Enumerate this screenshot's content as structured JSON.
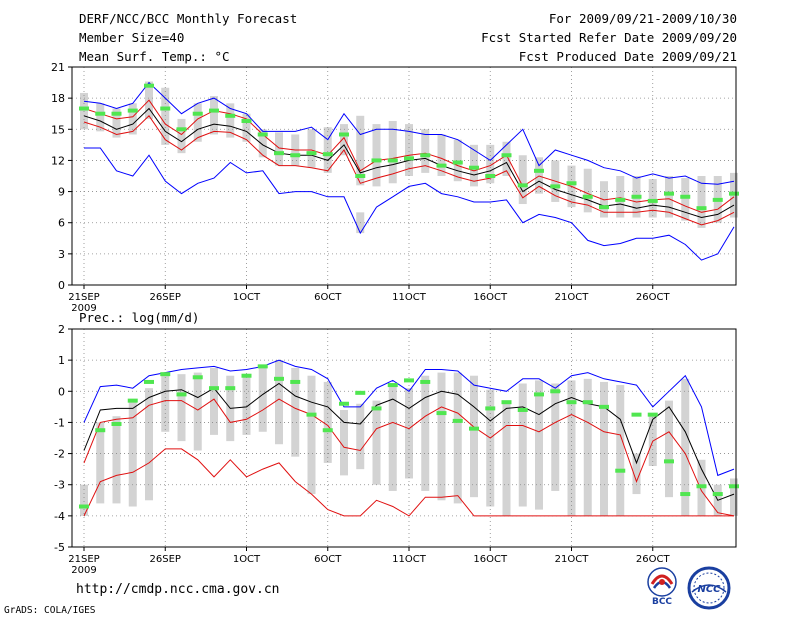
{
  "header": {
    "title": "DERF/NCC/BCC Monthly Forecast",
    "member_size": "Member Size=40",
    "variable": "Mean Surf. Temp.: °C",
    "forecast_period": "For 2009/09/21-2009/10/30",
    "started_refer": "Fcst Started Refer Date 2009/09/20",
    "produced": "Fcst Produced Date 2009/09/21"
  },
  "footer": {
    "url": "http://cmdp.ncc.cma.gov.cn",
    "credit": "GrADS: COLA/IGES",
    "logo_bcc_text": "BCC",
    "logo_ncc_text": "NCC"
  },
  "colors": {
    "box": "#d3d3d3",
    "median": "#50e650",
    "max": "#0000ff",
    "min_line": "#e01010",
    "mean": "#000000",
    "pct": "#e01010",
    "grid": "#888888"
  },
  "chart_data": [
    {
      "type": "line",
      "title": "Mean Surf. Temp.: °C",
      "xlabel": "",
      "ylabel": "",
      "ylim": [
        0,
        21
      ],
      "yticks": [
        0,
        3,
        6,
        9,
        12,
        15,
        18,
        21
      ],
      "xlim": [
        1,
        41
      ],
      "xtick_pos": [
        1,
        6,
        11,
        16,
        21,
        26,
        31,
        36
      ],
      "xtick_labels": [
        "21SEP",
        "26SEP",
        "1OCT",
        "6OCT",
        "11OCT",
        "16OCT",
        "21OCT",
        "26OCT"
      ],
      "xtick_year": "2009",
      "grid": true,
      "series": [
        {
          "name": "max",
          "color": "#0000ff",
          "values": [
            17.7,
            17.5,
            17,
            17.5,
            19.5,
            18,
            16.5,
            17.5,
            18,
            17,
            16.5,
            14.8,
            14.8,
            14.8,
            15.2,
            14,
            16.5,
            14.5,
            15,
            15,
            14.8,
            14.5,
            14.5,
            14,
            13,
            12,
            13.5,
            15,
            11.5,
            13,
            12.5,
            12,
            11.3,
            11,
            10.3,
            10.7,
            10.3,
            10.5,
            9.8,
            9.7,
            10
          ]
        },
        {
          "name": "upper",
          "color": "#e01010",
          "values": [
            17,
            16.5,
            16,
            16.2,
            17.8,
            15.5,
            14.5,
            16,
            16.8,
            16.5,
            16,
            14.5,
            13.2,
            13,
            13,
            12.5,
            14.2,
            11,
            12,
            12.2,
            12.5,
            12.7,
            12.2,
            11.5,
            11,
            11.5,
            12.5,
            9.5,
            10.5,
            10,
            9.5,
            8.8,
            8.2,
            8.4,
            8,
            8.2,
            8.3,
            7.6,
            7,
            7.3,
            8.5
          ]
        },
        {
          "name": "mean",
          "color": "#000000",
          "values": [
            16.3,
            15.8,
            15,
            15.5,
            17,
            14.8,
            13.8,
            15,
            15.5,
            15.3,
            14.8,
            13.5,
            12.7,
            12.5,
            12.5,
            12,
            13.5,
            10.8,
            11.3,
            11.6,
            12,
            12.2,
            11.5,
            11,
            10.6,
            11,
            11.8,
            9,
            10,
            9.2,
            8.7,
            8.2,
            7.6,
            7.8,
            7.4,
            7.7,
            7.5,
            7,
            6.5,
            6.8,
            7.7
          ]
        },
        {
          "name": "lower",
          "color": "#e01010",
          "values": [
            15.7,
            15.2,
            14.5,
            14.8,
            16.3,
            14,
            13,
            14.2,
            14.8,
            14.7,
            14,
            12.5,
            11.5,
            11.5,
            11.3,
            11,
            13,
            9.8,
            10.3,
            10.7,
            11.2,
            11.5,
            11,
            10.4,
            10,
            10.3,
            11,
            8.4,
            9.5,
            8.6,
            8,
            7.7,
            7,
            7,
            7,
            7.2,
            7,
            6.4,
            5.8,
            6.2,
            7
          ]
        },
        {
          "name": "min",
          "color": "#0000ff",
          "values": [
            13.2,
            13.2,
            11,
            10.5,
            12.5,
            10,
            8.8,
            9.8,
            10.3,
            11.8,
            10.8,
            11,
            8.8,
            9,
            9,
            8.5,
            8.5,
            5,
            7.5,
            8.5,
            9.5,
            9.8,
            8.8,
            8.5,
            8,
            8,
            8.2,
            6,
            6.8,
            6.5,
            6,
            4.3,
            3.8,
            4,
            4.5,
            4.5,
            4.8,
            3.9,
            2.4,
            3,
            5.6
          ]
        }
      ],
      "median": [
        17,
        16.5,
        16.5,
        16.8,
        19.2,
        17,
        15,
        16.5,
        16.8,
        16.3,
        15.8,
        14.5,
        12.7,
        12.5,
        12.7,
        12.6,
        14.5,
        10.5,
        12,
        12,
        12.2,
        12.5,
        11.5,
        11.8,
        11.3,
        10.5,
        12.5,
        9.6,
        11,
        9.5,
        9.8,
        8.5,
        7.5,
        8.2,
        8.5,
        8.1,
        8.8,
        8.5,
        7.4,
        8.2,
        8.8
      ],
      "box_low": [
        15,
        14.8,
        14.2,
        14.5,
        16,
        13.5,
        12.7,
        13.8,
        14.5,
        14.2,
        13.8,
        12.3,
        11.5,
        11.5,
        11.3,
        10.8,
        12.5,
        9.6,
        9.5,
        9.8,
        10.5,
        10.8,
        10.5,
        10,
        9.5,
        9.8,
        10.5,
        7.8,
        8.8,
        8,
        7.5,
        7,
        6.5,
        6.5,
        6.5,
        6.5,
        6.5,
        6.2,
        5.5,
        6,
        6.5
      ],
      "box_high": [
        18.5,
        17.5,
        17,
        17.5,
        19.6,
        19,
        16,
        17.5,
        18.2,
        17.5,
        16.5,
        15,
        14.7,
        14.5,
        15,
        15.2,
        15.5,
        16.3,
        15.5,
        15.8,
        15.5,
        15,
        14.5,
        14,
        13.5,
        13.5,
        13.8,
        12.5,
        12.3,
        12,
        11.5,
        11.2,
        10,
        10.5,
        10.5,
        10.2,
        10.5,
        10.3,
        10.5,
        10.5,
        10.8
      ],
      "box_extra": [
        [
          0,
          0
        ],
        [
          0,
          0
        ],
        [
          0,
          0
        ],
        [
          0,
          0
        ],
        [
          0,
          0
        ],
        [
          0,
          0
        ],
        [
          0,
          0
        ],
        [
          0,
          0
        ],
        [
          0,
          0
        ],
        [
          0,
          0
        ],
        [
          0,
          0
        ],
        [
          0,
          0
        ],
        [
          0,
          0
        ],
        [
          0,
          0
        ],
        [
          0,
          0
        ],
        [
          0,
          0
        ],
        [
          0,
          0
        ],
        [
          5,
          7
        ],
        [
          0,
          0
        ],
        [
          0,
          0
        ],
        [
          0,
          0
        ],
        [
          0,
          0
        ],
        [
          0,
          0
        ],
        [
          0,
          0
        ],
        [
          0,
          0
        ],
        [
          0,
          0
        ],
        [
          0,
          0
        ],
        [
          0,
          0
        ],
        [
          0,
          0
        ],
        [
          0,
          0
        ],
        [
          0,
          0
        ],
        [
          0,
          0
        ],
        [
          0,
          0
        ],
        [
          0,
          0
        ],
        [
          0,
          0
        ],
        [
          0,
          0
        ],
        [
          0,
          0
        ],
        [
          0,
          0
        ],
        [
          0,
          0
        ],
        [
          0,
          0
        ],
        [
          0,
          0
        ]
      ]
    },
    {
      "type": "line",
      "title": "Prec.: log(mm/d)",
      "xlabel": "",
      "ylabel": "",
      "ylim": [
        -5,
        2
      ],
      "yticks": [
        -5,
        -4,
        -3,
        -2,
        -1,
        0,
        1,
        2
      ],
      "xlim": [
        1,
        41
      ],
      "xtick_pos": [
        1,
        6,
        11,
        16,
        21,
        26,
        31,
        36
      ],
      "xtick_labels": [
        "21SEP",
        "26SEP",
        "1OCT",
        "6OCT",
        "11OCT",
        "16OCT",
        "21OCT",
        "26OCT"
      ],
      "xtick_year": "2009",
      "grid": true,
      "series": [
        {
          "name": "max",
          "color": "#0000ff",
          "values": [
            -1,
            0.15,
            0.2,
            0.1,
            0.5,
            0.6,
            0.7,
            0.75,
            0.8,
            0.65,
            0.7,
            0.8,
            1,
            0.8,
            0.7,
            0.4,
            -0.5,
            -0.5,
            0.1,
            0.35,
            0,
            0.7,
            0.7,
            0.65,
            0.2,
            0.1,
            0,
            0.4,
            0.4,
            0.1,
            0.5,
            0.6,
            0.4,
            0.3,
            0.2,
            -0.5,
            0,
            0.5,
            -0.5,
            -2.7,
            -2.5
          ]
        },
        {
          "name": "upper",
          "color": "#000000",
          "values": [
            -1.9,
            -0.6,
            -0.55,
            -0.55,
            -0.2,
            0,
            0.05,
            -0.2,
            0.1,
            -0.55,
            -0.5,
            -0.1,
            0.25,
            -0.15,
            -0.35,
            -0.5,
            -1,
            -1.05,
            -0.45,
            -0.25,
            -0.55,
            -0.2,
            0,
            -0.1,
            -0.5,
            -0.95,
            -0.55,
            -0.5,
            -0.75,
            -0.4,
            -0.2,
            -0.4,
            -0.5,
            -0.9,
            -2.3,
            -0.9,
            -0.5,
            -1.3,
            -2.5,
            -3.5,
            -3.3
          ]
        },
        {
          "name": "lower",
          "color": "#e01010",
          "values": [
            -2.3,
            -1,
            -0.9,
            -0.85,
            -0.45,
            -0.3,
            -0.3,
            -0.6,
            -0.25,
            -1,
            -0.9,
            -0.6,
            -0.25,
            -0.55,
            -0.75,
            -1.1,
            -1.8,
            -1.9,
            -1.2,
            -1,
            -1.2,
            -0.8,
            -0.5,
            -0.7,
            -1.15,
            -1.5,
            -1.1,
            -1.1,
            -1.3,
            -1,
            -0.75,
            -1,
            -1.3,
            -1.4,
            -2.9,
            -1.6,
            -1.3,
            -2,
            -3.2,
            -3.9,
            -4
          ]
        },
        {
          "name": "min",
          "color": "#e01010",
          "values": [
            -4,
            -2.9,
            -2.7,
            -2.6,
            -2.3,
            -1.85,
            -1.85,
            -2.2,
            -2.75,
            -2.2,
            -2.75,
            -2.5,
            -2.3,
            -2.9,
            -3.3,
            -3.8,
            -4,
            -4,
            -3.5,
            -3.7,
            -4,
            -3.4,
            -3.4,
            -3.35,
            -4,
            -4,
            -4,
            -4,
            -4,
            -4,
            -4,
            -4,
            -4,
            -4,
            -4,
            -4,
            -4,
            -4,
            -4,
            -4,
            -4
          ]
        }
      ],
      "median": [
        -3.7,
        -1.25,
        -1.05,
        -0.3,
        0.3,
        0.55,
        -0.1,
        0.45,
        0.1,
        0.1,
        0.5,
        0.8,
        0.4,
        0.3,
        -0.75,
        -1.25,
        -0.4,
        -0.05,
        -0.55,
        0.2,
        0.35,
        0.3,
        -0.7,
        -0.95,
        -1.2,
        -0.55,
        -0.35,
        -0.6,
        -0.1,
        0,
        -0.35,
        -0.35,
        -0.5,
        -2.55,
        -0.75,
        -0.75,
        -2.25,
        -3.3,
        -3.05,
        -3.3,
        -3.05
      ],
      "box_low": [
        -4,
        -3.6,
        -3.6,
        -3.7,
        -3.5,
        -1.3,
        -1.6,
        -1.9,
        -1.4,
        -1.6,
        -1.4,
        -1.3,
        -1.7,
        -2.1,
        -3.3,
        -2.3,
        -2.7,
        -2.5,
        -3,
        -3.2,
        -2.8,
        -3.2,
        -3.5,
        -3.6,
        -3.4,
        -3.7,
        -4,
        -3.7,
        -3.8,
        -3.2,
        -4,
        -4,
        -4,
        -4,
        -3.3,
        -2.4,
        -3.4,
        -4,
        -4,
        -4,
        -4
      ],
      "box_high": [
        -3,
        -1,
        -0.8,
        -0.3,
        0.1,
        0.6,
        0.55,
        0.6,
        0.75,
        0.5,
        0.45,
        0.85,
        1,
        0.75,
        0.5,
        0.3,
        -0.6,
        -0.4,
        -0.3,
        0.2,
        0.1,
        0.5,
        0.6,
        0.6,
        0.5,
        0.05,
        -0.3,
        0.25,
        0.35,
        0.25,
        0.35,
        0.4,
        0.3,
        0.2,
        -2,
        -0.7,
        -0.3,
        0.4,
        -2.2,
        -3,
        -2.8
      ],
      "box_extra": []
    }
  ]
}
